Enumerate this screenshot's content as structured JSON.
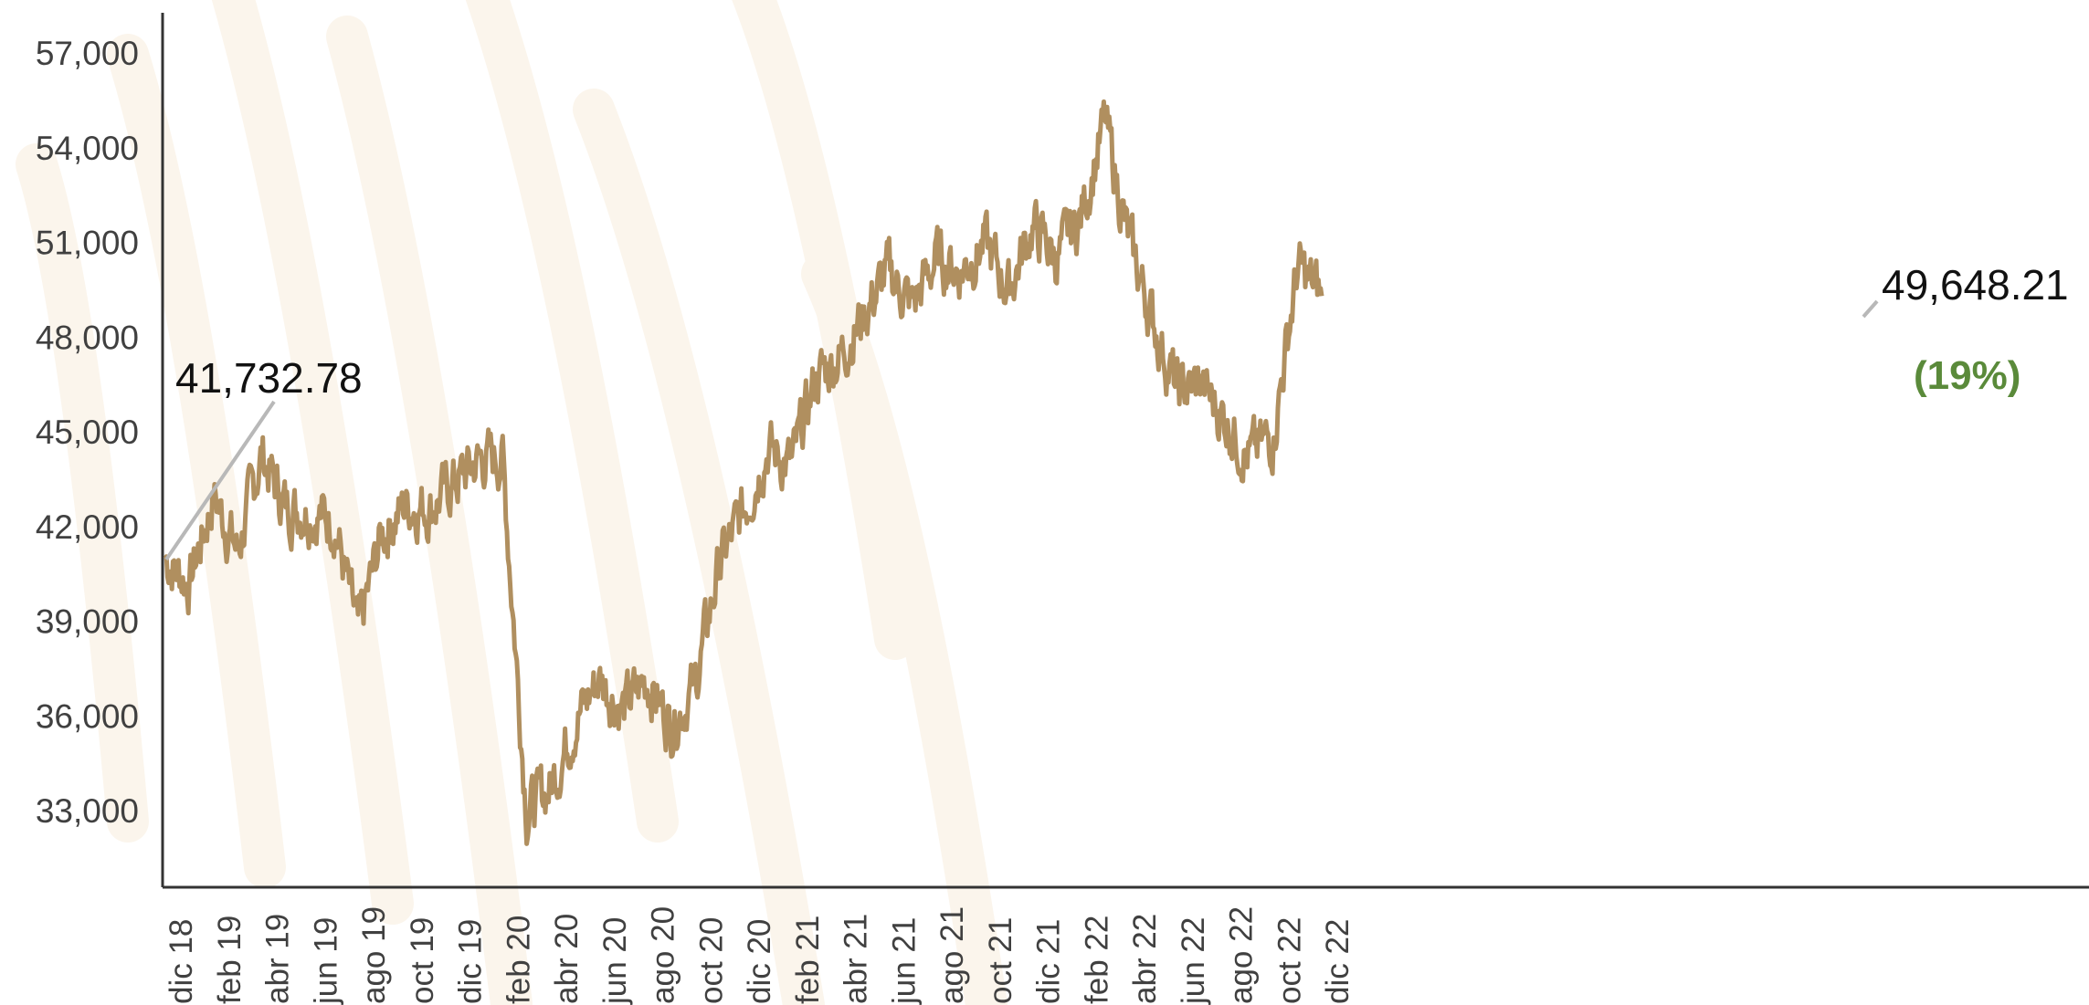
{
  "chart_data": {
    "type": "line",
    "title": "",
    "xlabel": "",
    "ylabel": "",
    "ylim": [
      30500,
      58000
    ],
    "grid": false,
    "y_ticks": [
      33000,
      36000,
      39000,
      42000,
      45000,
      48000,
      51000,
      54000,
      57000
    ],
    "y_tick_labels": [
      "33,000",
      "36,000",
      "39,000",
      "42,000",
      "45,000",
      "48,000",
      "51,000",
      "54,000",
      "57,000"
    ],
    "x_tick_labels": [
      "dic 18",
      "feb 19",
      "abr 19",
      "jun 19",
      "ago 19",
      "oct 19",
      "dic 19",
      "feb 20",
      "abr 20",
      "jun 20",
      "ago 20",
      "oct 20",
      "dic 20",
      "feb 21",
      "abr 21",
      "jun 21",
      "ago 21",
      "oct 21",
      "dic 21",
      "feb 22",
      "abr 22",
      "jun 22",
      "ago 22",
      "oct 22",
      "dic 22"
    ],
    "series": [
      {
        "color": "#b08f5f",
        "x": [
          "dic 18",
          "ene 19",
          "feb 19",
          "mar 19",
          "abr 19",
          "may 19",
          "jun 19",
          "jul 19",
          "ago 19",
          "sep 19",
          "oct 19",
          "nov 19",
          "dic 19",
          "ene 20",
          "feb 20",
          "mar 20",
          "abr 20",
          "may 20",
          "jun 20",
          "jul 20",
          "ago 20",
          "sep 20",
          "oct 20",
          "nov 20",
          "dic 20",
          "ene 21",
          "feb 21",
          "mar 21",
          "abr 21",
          "may 21",
          "jun 21",
          "jul 21",
          "ago 21",
          "sep 21",
          "oct 21",
          "nov 21",
          "dic 21",
          "ene 22",
          "feb 22",
          "mar 22",
          "abr 22",
          "may 22",
          "jun 22",
          "jul 22",
          "ago 22",
          "sep 22",
          "oct 22",
          "nov 22",
          "dic 22"
        ],
        "values": [
          41000,
          40200,
          43000,
          41200,
          44300,
          42600,
          42500,
          42200,
          38600,
          41800,
          42700,
          42600,
          43400,
          44100,
          44200,
          33000,
          33800,
          35800,
          37200,
          36200,
          37200,
          35700,
          37000,
          40800,
          42500,
          44500,
          43900,
          46700,
          47400,
          48700,
          50100,
          49000,
          50500,
          50100,
          51000,
          49500,
          51500,
          50500,
          51800,
          54800,
          51000,
          48500,
          46300,
          46500,
          45400,
          44200,
          44900,
          50200,
          49300
        ]
      }
    ],
    "annotations": [
      {
        "label": "41,732.78"
      },
      {
        "label": "49,648.21"
      },
      {
        "label": "(19%)",
        "color": "#5a8a3a"
      }
    ]
  }
}
